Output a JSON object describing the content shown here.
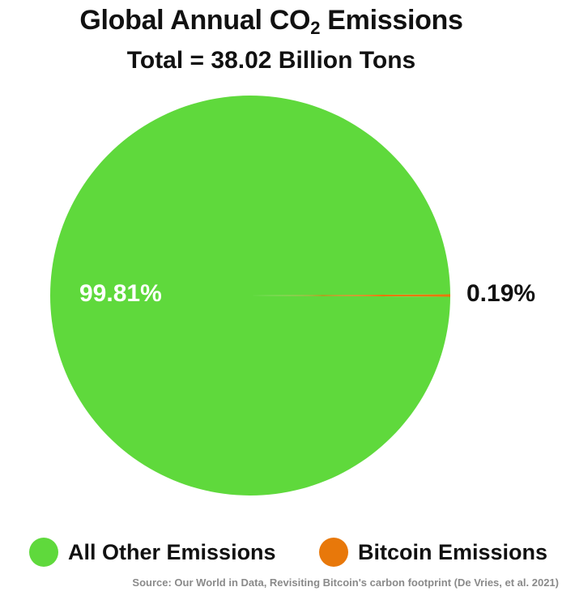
{
  "chart_data": {
    "type": "pie",
    "title_main": "Global Annual CO",
    "title_sub": "2",
    "title_end": " Emissions",
    "subtitle": "Total = 38.02 Billion Tons",
    "slices": [
      {
        "label": "All Other Emissions",
        "value": 99.81,
        "display": "99.81%",
        "color": "#5fd93c"
      },
      {
        "label": "Bitcoin Emissions",
        "value": 0.19,
        "display": "0.19%",
        "color": "#e8780a"
      }
    ],
    "legend_position": "bottom",
    "source": "Source: Our World in Data, Revisiting Bitcoin's carbon footprint (De Vries, et al. 2021)"
  }
}
